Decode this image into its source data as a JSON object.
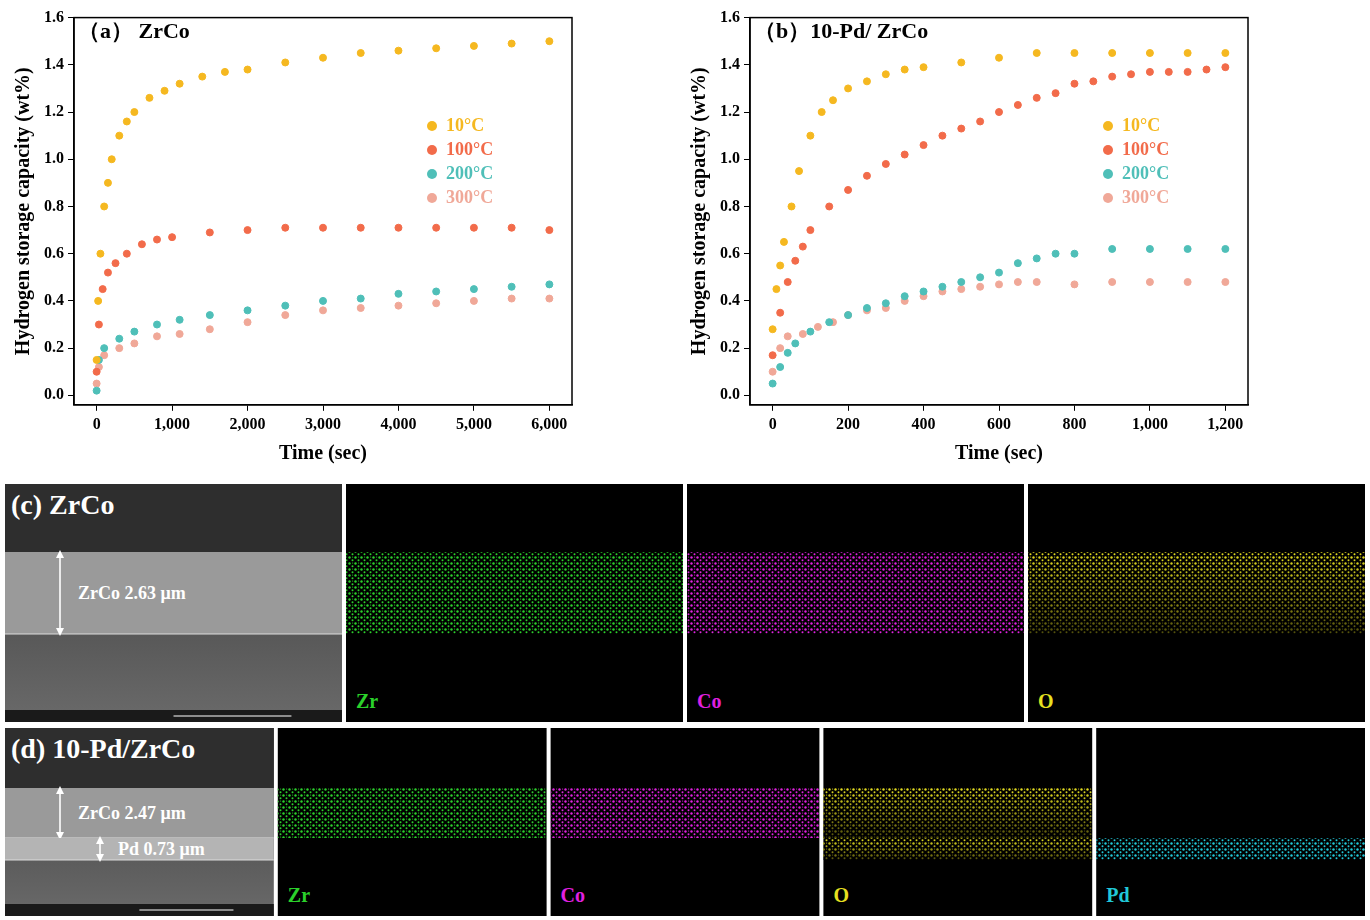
{
  "chart_data": [
    {
      "type": "scatter",
      "title": "（a） ZrCo",
      "x_label": "Time (sec)",
      "y_label": "Hydrogen storage capacity (wt%)",
      "xlim": [
        -300,
        6300
      ],
      "xticks": [
        0,
        {
          "value": 1000,
          "label": "1,000"
        },
        {
          "value": 2000,
          "label": "2,000"
        },
        {
          "value": 3000,
          "label": "3,000"
        },
        {
          "value": 4000,
          "label": "4,000"
        },
        {
          "value": 5000,
          "label": "5,000"
        },
        {
          "value": 6000,
          "label": "6,000"
        }
      ],
      "ylim": [
        -0.04,
        1.6
      ],
      "yticks": [
        {
          "value": 0,
          "label": "0.0"
        },
        0.2,
        0.4,
        0.6,
        0.8,
        {
          "value": 1,
          "label": "1.0"
        },
        1.2,
        1.4,
        1.6
      ],
      "grid": false,
      "legend": "right",
      "marker": "circle",
      "series": [
        {
          "name": "10°C",
          "color": "#f5b820",
          "x": [
            0,
            20,
            50,
            100,
            150,
            200,
            300,
            400,
            500,
            700,
            900,
            1100,
            1400,
            1700,
            2000,
            2500,
            3000,
            3500,
            4000,
            4500,
            5000,
            5500,
            6000
          ],
          "values": [
            0.15,
            0.4,
            0.6,
            0.8,
            0.9,
            1.0,
            1.1,
            1.16,
            1.2,
            1.26,
            1.29,
            1.32,
            1.35,
            1.37,
            1.38,
            1.41,
            1.43,
            1.45,
            1.46,
            1.47,
            1.48,
            1.49,
            1.5
          ]
        },
        {
          "name": "100°C",
          "color": "#f26b4a",
          "x": [
            0,
            30,
            80,
            150,
            250,
            400,
            600,
            800,
            1000,
            1500,
            2000,
            2500,
            3000,
            3500,
            4000,
            4500,
            5000,
            5500,
            6000
          ],
          "values": [
            0.1,
            0.3,
            0.45,
            0.52,
            0.56,
            0.6,
            0.64,
            0.66,
            0.67,
            0.69,
            0.7,
            0.71,
            0.71,
            0.71,
            0.71,
            0.71,
            0.71,
            0.71,
            0.7
          ]
        },
        {
          "name": "200°C",
          "color": "#4fbfb8",
          "x": [
            0,
            30,
            100,
            300,
            500,
            800,
            1100,
            1500,
            2000,
            2500,
            3000,
            3500,
            4000,
            4500,
            5000,
            5500,
            6000
          ],
          "values": [
            0.02,
            0.15,
            0.2,
            0.24,
            0.27,
            0.3,
            0.32,
            0.34,
            0.36,
            0.38,
            0.4,
            0.41,
            0.43,
            0.44,
            0.45,
            0.46,
            0.47
          ]
        },
        {
          "name": "300°C",
          "color": "#f0a898",
          "x": [
            0,
            30,
            100,
            300,
            500,
            800,
            1100,
            1500,
            2000,
            2500,
            3000,
            3500,
            4000,
            4500,
            5000,
            5500,
            6000
          ],
          "values": [
            0.05,
            0.12,
            0.17,
            0.2,
            0.22,
            0.25,
            0.26,
            0.28,
            0.31,
            0.34,
            0.36,
            0.37,
            0.38,
            0.39,
            0.4,
            0.41,
            0.41
          ]
        }
      ]
    },
    {
      "type": "scatter",
      "title": "（b）10-Pd/ ZrCo",
      "x_label": "Time (sec)",
      "y_label": "Hydrogen storage capacity (wt%)",
      "xlim": [
        -60,
        1260
      ],
      "xticks": [
        0,
        200,
        400,
        600,
        800,
        {
          "value": 1000,
          "label": "1,000"
        },
        {
          "value": 1200,
          "label": "1,200"
        }
      ],
      "ylim": [
        -0.04,
        1.6
      ],
      "yticks": [
        {
          "value": 0,
          "label": "0.0"
        },
        0.2,
        0.4,
        0.6,
        0.8,
        {
          "value": 1,
          "label": "1.0"
        },
        1.2,
        1.4,
        1.6
      ],
      "grid": false,
      "legend": "right",
      "marker": "circle",
      "series": [
        {
          "name": "10°C",
          "color": "#f5b820",
          "x": [
            0,
            10,
            20,
            30,
            50,
            70,
            100,
            130,
            160,
            200,
            250,
            300,
            350,
            400,
            500,
            600,
            700,
            800,
            900,
            1000,
            1100,
            1200
          ],
          "values": [
            0.28,
            0.45,
            0.55,
            0.65,
            0.8,
            0.95,
            1.1,
            1.2,
            1.25,
            1.3,
            1.33,
            1.36,
            1.38,
            1.39,
            1.41,
            1.43,
            1.45,
            1.45,
            1.45,
            1.45,
            1.45,
            1.45
          ]
        },
        {
          "name": "100°C",
          "color": "#f26b4a",
          "x": [
            0,
            20,
            40,
            60,
            80,
            100,
            150,
            200,
            250,
            300,
            350,
            400,
            450,
            500,
            550,
            600,
            650,
            700,
            750,
            800,
            850,
            900,
            950,
            1000,
            1050,
            1100,
            1150,
            1200
          ],
          "values": [
            0.17,
            0.35,
            0.48,
            0.57,
            0.63,
            0.7,
            0.8,
            0.87,
            0.93,
            0.98,
            1.02,
            1.06,
            1.1,
            1.13,
            1.16,
            1.2,
            1.23,
            1.26,
            1.28,
            1.32,
            1.33,
            1.35,
            1.36,
            1.37,
            1.37,
            1.37,
            1.38,
            1.39
          ]
        },
        {
          "name": "200°C",
          "color": "#4fbfb8",
          "x": [
            0,
            20,
            40,
            60,
            100,
            150,
            200,
            250,
            300,
            350,
            400,
            450,
            500,
            550,
            600,
            650,
            700,
            750,
            800,
            900,
            1000,
            1100,
            1200
          ],
          "values": [
            0.05,
            0.12,
            0.18,
            0.22,
            0.27,
            0.31,
            0.34,
            0.37,
            0.39,
            0.42,
            0.44,
            0.46,
            0.48,
            0.5,
            0.52,
            0.56,
            0.58,
            0.6,
            0.6,
            0.62,
            0.62,
            0.62,
            0.62
          ]
        },
        {
          "name": "300°C",
          "color": "#f0a898",
          "x": [
            0,
            20,
            40,
            80,
            120,
            160,
            200,
            250,
            300,
            350,
            400,
            450,
            500,
            550,
            600,
            650,
            700,
            800,
            900,
            1000,
            1100,
            1200
          ],
          "values": [
            0.1,
            0.2,
            0.25,
            0.26,
            0.29,
            0.31,
            0.34,
            0.36,
            0.37,
            0.4,
            0.42,
            0.44,
            0.45,
            0.46,
            0.47,
            0.48,
            0.48,
            0.47,
            0.48,
            0.48,
            0.48,
            0.48
          ]
        }
      ]
    }
  ],
  "micrographs": [
    {
      "label": "(c) ZrCo",
      "layers": [
        {
          "name": "ZrCo",
          "label": "ZrCo 2.63 μm"
        }
      ],
      "maps": [
        {
          "element": "Zr",
          "color": "#2bd12b",
          "layers": [
            "ZrCo"
          ]
        },
        {
          "element": "Co",
          "color": "#e020e0",
          "layers": [
            "ZrCo"
          ]
        },
        {
          "element": "O",
          "color": "#e6e020",
          "layers": [
            "ZrCo"
          ]
        }
      ]
    },
    {
      "label": "(d) 10-Pd/ZrCo",
      "layers": [
        {
          "name": "ZrCo",
          "label": "ZrCo 2.47 μm"
        },
        {
          "name": "Pd",
          "label": "Pd 0.73 μm"
        }
      ],
      "maps": [
        {
          "element": "Zr",
          "color": "#2bd12b",
          "layers": [
            "ZrCo"
          ]
        },
        {
          "element": "Co",
          "color": "#e020e0",
          "layers": [
            "ZrCo"
          ]
        },
        {
          "element": "O",
          "color": "#e6e020",
          "layers": [
            "ZrCo",
            "Pd"
          ]
        },
        {
          "element": "Pd",
          "color": "#20c8d8",
          "layers": [
            "Pd"
          ]
        }
      ]
    }
  ]
}
